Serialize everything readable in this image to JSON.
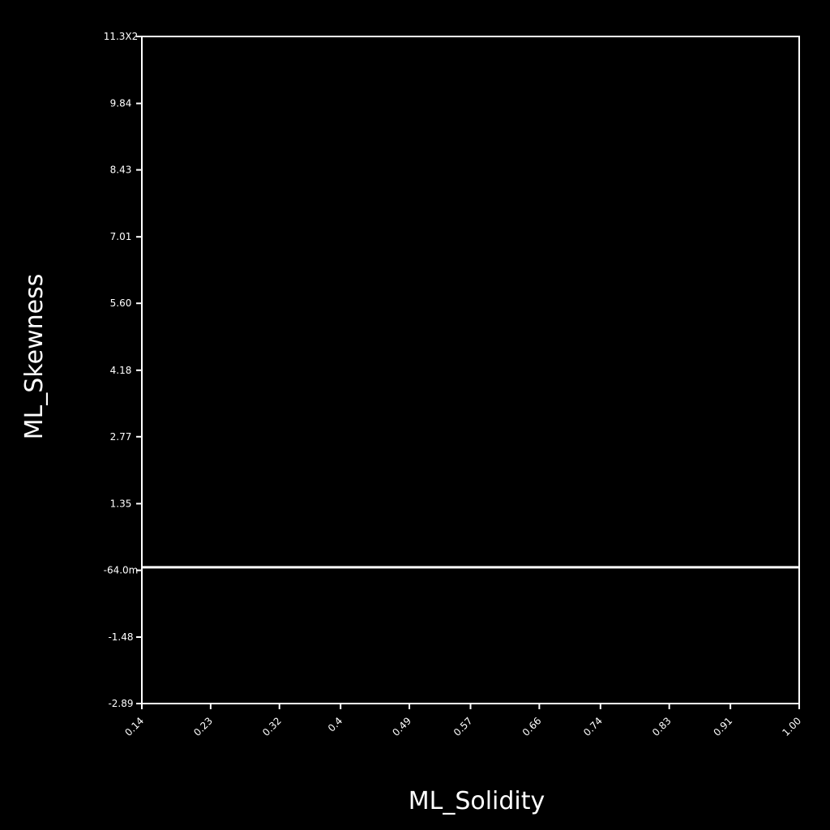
{
  "chart_data": {
    "type": "line",
    "x_label": "ML_Solidity",
    "y_label": "ML_Skewness",
    "x": [
      0.14,
      1.0
    ],
    "series": [
      {
        "color": "#ffffff",
        "values": [
          0,
          0
        ]
      }
    ],
    "xlim": [
      0.14,
      1.0
    ],
    "xticks": [
      0.14,
      0.23,
      0.32,
      0.4,
      0.49,
      0.57,
      0.66,
      0.74,
      0.83,
      0.91,
      {
        "value": 1.0,
        "label": "1.00"
      }
    ],
    "ylim": [
      -2.89,
      11.26
    ],
    "yticks": [
      -2.89,
      -1.48,
      {
        "value": -0.064,
        "label": "-64.0m"
      },
      1.35,
      2.77,
      4.18,
      {
        "value": 5.6,
        "label": "5.60"
      },
      7.01,
      8.43,
      9.84,
      {
        "value": 11.26,
        "label": "11.3X2"
      }
    ],
    "grid": false
  }
}
